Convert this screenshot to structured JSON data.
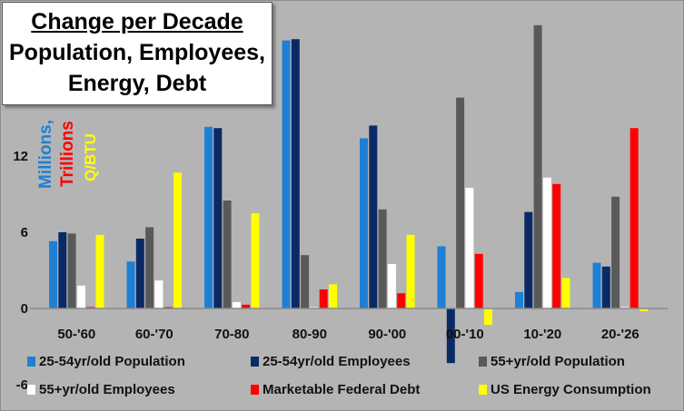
{
  "chart_data": {
    "type": "bar",
    "title_lines": [
      "Change per Decade",
      "Population, Employees,",
      "Energy, Debt"
    ],
    "unit_labels": [
      {
        "text": "Millions,",
        "color": "#1f7fd4"
      },
      {
        "text": "Trillions",
        "color": "#ff0000"
      },
      {
        "text": "Q/BTU",
        "color": "#ffff00"
      }
    ],
    "categories": [
      "50-'60",
      "60-'70",
      "70-80",
      "80-90",
      "90-'00",
      "00-'10",
      "10-'20",
      "20-'26"
    ],
    "y_ticks": [
      -6,
      0,
      6,
      12
    ],
    "ylim": [
      -6,
      22
    ],
    "grid": false,
    "legend_position": "bottom",
    "series": [
      {
        "name": "25-54yr/old Population",
        "color": "#1f7fd4",
        "values": [
          5.3,
          3.7,
          14.3,
          21.1,
          13.4,
          4.9,
          1.3,
          3.6
        ]
      },
      {
        "name": "25-54yr/old Employees",
        "color": "#0a2a66",
        "values": [
          6.0,
          5.5,
          14.2,
          21.2,
          14.4,
          -4.3,
          7.6,
          3.3
        ]
      },
      {
        "name": "55+yr/old Population",
        "color": "#595959",
        "values": [
          5.9,
          6.4,
          8.5,
          4.2,
          7.8,
          16.6,
          22.3,
          8.8
        ]
      },
      {
        "name": "55+yr/old Employees",
        "color": "#ffffff",
        "values": [
          1.8,
          2.2,
          0.5,
          0.0,
          3.5,
          9.5,
          10.3,
          0.0
        ]
      },
      {
        "name": "Marketable Federal Debt",
        "color": "#ff0000",
        "values": [
          0.0,
          0.0,
          0.3,
          1.5,
          1.2,
          4.3,
          9.8,
          14.2
        ]
      },
      {
        "name": "US Energy Consumption",
        "color": "#ffff00",
        "values": [
          5.8,
          10.7,
          7.5,
          1.9,
          5.8,
          -1.3,
          2.4,
          -0.2
        ]
      }
    ]
  }
}
